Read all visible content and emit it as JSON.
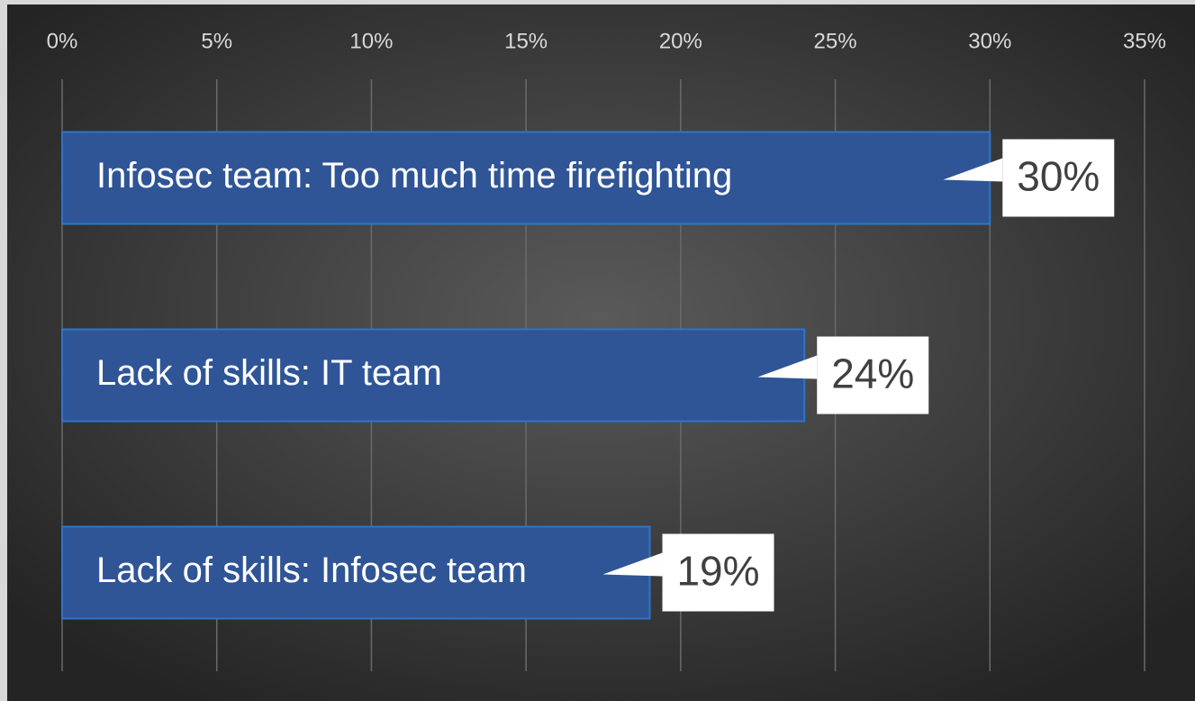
{
  "chart_data": {
    "type": "bar",
    "orientation": "horizontal",
    "categories": [
      "Infosec team:  Too much time firefighting",
      "Lack of skills:  IT team",
      "Lack of skills:  Infosec team"
    ],
    "values": [
      30,
      24,
      19
    ],
    "value_labels": [
      "30%",
      "24%",
      "19%"
    ],
    "color": "#2f5597",
    "xlim": [
      0,
      35
    ],
    "xticks": [
      {
        "value": 0,
        "label": "0%"
      },
      {
        "value": 5,
        "label": "5%"
      },
      {
        "value": 10,
        "label": "10%"
      },
      {
        "value": 15,
        "label": "15%"
      },
      {
        "value": 20,
        "label": "20%"
      },
      {
        "value": 25,
        "label": "25%"
      },
      {
        "value": 30,
        "label": "30%"
      },
      {
        "value": 35,
        "label": "35%"
      }
    ],
    "grid": true
  }
}
